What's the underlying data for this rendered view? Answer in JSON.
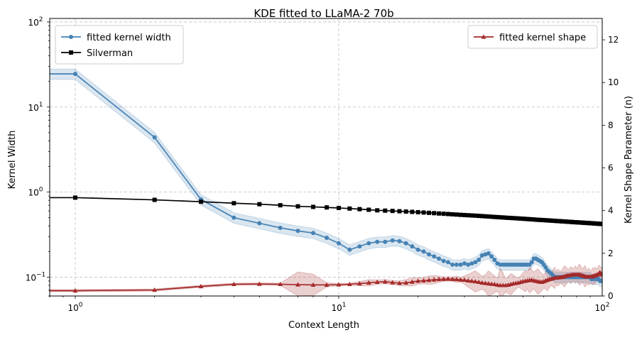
{
  "chart_data": {
    "type": "line",
    "title": "KDE fitted to LLaMA-2 70b",
    "xlabel": "Context Length",
    "ylabel_left": "Kernel Width",
    "ylabel_right": "Kernel Shape Parameter (n)",
    "x_scale": "log",
    "y_left_scale": "log",
    "xlim": [
      0.8,
      100
    ],
    "ylim_left": [
      0.06,
      110
    ],
    "ylim_right": [
      0,
      13
    ],
    "grid": true,
    "x_ticks": [
      {
        "value": 1,
        "base": "10",
        "exp": "0"
      },
      {
        "value": 10,
        "base": "10",
        "exp": "1"
      },
      {
        "value": 100,
        "base": "10",
        "exp": "2"
      }
    ],
    "y_left_ticks": [
      {
        "value": 0.1,
        "base": "10",
        "exp": "−1"
      },
      {
        "value": 1,
        "base": "10",
        "exp": "0"
      },
      {
        "value": 10,
        "base": "10",
        "exp": "1"
      },
      {
        "value": 100,
        "base": "10",
        "exp": "2"
      }
    ],
    "y_right_ticks": [
      "0",
      "2",
      "4",
      "6",
      "8",
      "10",
      "12"
    ],
    "legend_left": {
      "placement": "upper-left",
      "entries": [
        "fitted kernel width",
        "Silverman"
      ]
    },
    "legend_right": {
      "placement": "upper-right",
      "entries": [
        "fitted kernel shape"
      ]
    },
    "series": [
      {
        "name": "fitted kernel width",
        "axis": "left",
        "color": "#4682b4",
        "marker": "circle",
        "band_rel": 0.14,
        "x": [
          0.8,
          1,
          2,
          3,
          4,
          5,
          6,
          7,
          8,
          9,
          10,
          11,
          12,
          13,
          14,
          15,
          16,
          17,
          18,
          19,
          20,
          21,
          22,
          23,
          24,
          25,
          26,
          27,
          28,
          29,
          30,
          31,
          32,
          33,
          34,
          35,
          36,
          37,
          38,
          39,
          40,
          41,
          42,
          43,
          44,
          45,
          46,
          47,
          48,
          49,
          50,
          51,
          52,
          53,
          54,
          55,
          56,
          57,
          58,
          59,
          60,
          61,
          62,
          63,
          64,
          65,
          66,
          67,
          68,
          69,
          70,
          71,
          72,
          73,
          74,
          75,
          76,
          77,
          78,
          79,
          80,
          81,
          82,
          83,
          84,
          85,
          86,
          87,
          88,
          89,
          90,
          91,
          92,
          93,
          94,
          95,
          96,
          97,
          98,
          99,
          100
        ],
        "y": [
          24.5,
          24.5,
          4.4,
          0.82,
          0.5,
          0.43,
          0.38,
          0.35,
          0.33,
          0.29,
          0.25,
          0.21,
          0.23,
          0.25,
          0.26,
          0.26,
          0.27,
          0.265,
          0.25,
          0.23,
          0.21,
          0.2,
          0.185,
          0.175,
          0.165,
          0.155,
          0.15,
          0.14,
          0.14,
          0.14,
          0.145,
          0.14,
          0.145,
          0.15,
          0.16,
          0.18,
          0.185,
          0.19,
          0.175,
          0.16,
          0.145,
          0.14,
          0.14,
          0.14,
          0.14,
          0.14,
          0.14,
          0.14,
          0.14,
          0.14,
          0.14,
          0.14,
          0.14,
          0.14,
          0.15,
          0.165,
          0.165,
          0.16,
          0.155,
          0.15,
          0.14,
          0.13,
          0.12,
          0.115,
          0.11,
          0.105,
          0.1,
          0.1,
          0.1,
          0.1,
          0.1,
          0.1,
          0.1,
          0.1,
          0.1,
          0.1,
          0.1,
          0.1,
          0.1,
          0.1,
          0.1,
          0.1,
          0.1,
          0.1,
          0.1,
          0.1,
          0.1,
          0.1,
          0.1,
          0.1,
          0.1,
          0.095,
          0.095,
          0.095,
          0.095,
          0.095,
          0.095,
          0.095,
          0.09,
          0.09,
          0.09
        ]
      },
      {
        "name": "Silverman",
        "axis": "left",
        "color": "#000000",
        "marker": "square",
        "x": [
          0.8,
          1,
          2,
          3,
          4,
          5,
          6,
          7,
          8,
          9,
          10,
          11,
          12,
          13,
          14,
          15,
          16,
          17,
          18,
          19,
          20,
          21,
          22,
          23,
          24,
          25,
          26,
          27,
          28,
          29,
          30,
          31,
          32,
          33,
          34,
          35,
          36,
          37,
          38,
          39,
          40,
          41,
          42,
          43,
          44,
          45,
          46,
          47,
          48,
          49,
          50,
          51,
          52,
          53,
          54,
          55,
          56,
          57,
          58,
          59,
          60,
          61,
          62,
          63,
          64,
          65,
          66,
          67,
          68,
          69,
          70,
          71,
          72,
          73,
          74,
          75,
          76,
          77,
          78,
          79,
          80,
          81,
          82,
          83,
          84,
          85,
          86,
          87,
          88,
          89,
          90,
          91,
          92,
          93,
          94,
          95,
          96,
          97,
          98,
          99,
          100
        ],
        "y": [
          0.86,
          0.86,
          0.81,
          0.77,
          0.74,
          0.72,
          0.7,
          0.68,
          0.67,
          0.66,
          0.65,
          0.64,
          0.63,
          0.62,
          0.61,
          0.605,
          0.6,
          0.595,
          0.59,
          0.585,
          0.58,
          0.575,
          0.57,
          0.565,
          0.56,
          0.556,
          0.552,
          0.548,
          0.544,
          0.54,
          0.537,
          0.534,
          0.531,
          0.528,
          0.525,
          0.522,
          0.519,
          0.516,
          0.513,
          0.51,
          0.508,
          0.505,
          0.503,
          0.5,
          0.498,
          0.496,
          0.494,
          0.492,
          0.49,
          0.488,
          0.486,
          0.484,
          0.482,
          0.48,
          0.478,
          0.476,
          0.474,
          0.472,
          0.471,
          0.469,
          0.468,
          0.466,
          0.465,
          0.463,
          0.462,
          0.46,
          0.459,
          0.457,
          0.456,
          0.455,
          0.453,
          0.452,
          0.451,
          0.449,
          0.448,
          0.447,
          0.446,
          0.444,
          0.443,
          0.442,
          0.441,
          0.44,
          0.439,
          0.438,
          0.437,
          0.436,
          0.435,
          0.434,
          0.433,
          0.432,
          0.431,
          0.43,
          0.429,
          0.428,
          0.427,
          0.426,
          0.425,
          0.424,
          0.423,
          0.422,
          0.421
        ]
      },
      {
        "name": "fitted kernel shape",
        "axis": "right",
        "color": "#a52a2a",
        "marker": "triangle",
        "x": [
          0.8,
          1,
          2,
          3,
          4,
          5,
          6,
          7,
          8,
          9,
          10,
          11,
          12,
          13,
          14,
          15,
          16,
          17,
          18,
          19,
          20,
          21,
          22,
          23,
          24,
          25,
          26,
          27,
          28,
          29,
          30,
          31,
          32,
          33,
          34,
          35,
          36,
          37,
          38,
          39,
          40,
          41,
          42,
          43,
          44,
          45,
          46,
          47,
          48,
          49,
          50,
          51,
          52,
          53,
          54,
          55,
          56,
          57,
          58,
          59,
          60,
          61,
          62,
          63,
          64,
          65,
          66,
          67,
          68,
          69,
          70,
          71,
          72,
          73,
          74,
          75,
          76,
          77,
          78,
          79,
          80,
          81,
          82,
          83,
          84,
          85,
          86,
          87,
          88,
          89,
          90,
          91,
          92,
          93,
          94,
          95,
          96,
          97,
          98,
          99,
          100
        ],
        "y": [
          0.25,
          0.25,
          0.28,
          0.45,
          0.55,
          0.56,
          0.55,
          0.53,
          0.52,
          0.52,
          0.53,
          0.55,
          0.58,
          0.62,
          0.65,
          0.67,
          0.63,
          0.6,
          0.62,
          0.66,
          0.7,
          0.72,
          0.74,
          0.76,
          0.78,
          0.79,
          0.8,
          0.79,
          0.78,
          0.76,
          0.75,
          0.72,
          0.7,
          0.68,
          0.65,
          0.62,
          0.6,
          0.58,
          0.56,
          0.55,
          0.52,
          0.5,
          0.5,
          0.5,
          0.52,
          0.55,
          0.58,
          0.6,
          0.62,
          0.65,
          0.68,
          0.7,
          0.72,
          0.74,
          0.75,
          0.72,
          0.7,
          0.68,
          0.66,
          0.65,
          0.68,
          0.72,
          0.75,
          0.78,
          0.8,
          0.82,
          0.85,
          0.85,
          0.86,
          0.87,
          0.88,
          0.9,
          0.92,
          0.95,
          0.96,
          0.97,
          0.98,
          1.0,
          1.0,
          1.0,
          1.0,
          1.0,
          1.0,
          0.98,
          0.96,
          0.94,
          0.92,
          0.9,
          0.9,
          0.9,
          0.9,
          0.9,
          0.92,
          0.94,
          0.96,
          0.98,
          1.0,
          1.05,
          1.1,
          1.05,
          1.0
        ],
        "band": [
          0.05,
          0.05,
          0.05,
          0.05,
          0.05,
          0.05,
          0.05,
          0.6,
          0.5,
          0.1,
          0.05,
          0.05,
          0.1,
          0.15,
          0.1,
          0.1,
          0.1,
          0.1,
          0.15,
          0.2,
          0.15,
          0.15,
          0.2,
          0.2,
          0.15,
          0.1,
          0.1,
          0.1,
          0.15,
          0.1,
          0.2,
          0.3,
          0.4,
          0.5,
          0.4,
          0.3,
          0.4,
          0.6,
          0.5,
          0.4,
          0.3,
          0.8,
          0.6,
          0.3,
          0.4,
          0.5,
          0.4,
          0.3,
          0.2,
          0.3,
          0.4,
          0.5,
          0.4,
          0.6,
          0.5,
          0.4,
          0.5,
          0.6,
          0.5,
          0.4,
          0.3,
          0.4,
          0.5,
          0.4,
          0.3,
          0.4,
          0.5,
          0.3,
          0.4,
          0.3,
          0.3,
          0.4,
          0.5,
          0.4,
          0.3,
          0.3,
          0.4,
          0.3,
          0.3,
          0.4,
          0.3,
          0.4,
          0.5,
          0.4,
          0.3,
          0.4,
          0.5,
          0.4,
          0.3,
          0.4,
          0.3,
          0.3,
          0.4,
          0.3,
          0.4,
          0.3,
          0.3,
          0.4,
          0.3,
          0.3,
          0.3
        ]
      }
    ]
  }
}
